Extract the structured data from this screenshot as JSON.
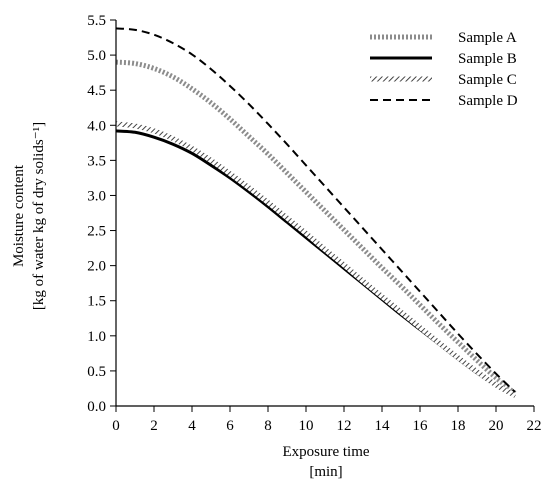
{
  "chart_data": {
    "type": "line",
    "xlabel": [
      "Exposure time",
      "[min]"
    ],
    "ylabel": [
      "Moisture content",
      "[kg of water kg of dry solids⁻¹]"
    ],
    "xlim": [
      0,
      22
    ],
    "ylim": [
      0,
      5.5
    ],
    "xticks": [
      "0",
      "2",
      "4",
      "6",
      "8",
      "10",
      "12",
      "14",
      "16",
      "18",
      "20",
      "22"
    ],
    "yticks": [
      "0.0",
      "0.5",
      "1.0",
      "1.5",
      "2.0",
      "2.5",
      "3.0",
      "3.5",
      "4.0",
      "4.5",
      "5.0",
      "5.5"
    ],
    "grid": false,
    "legend_position": "top-right",
    "series": [
      {
        "name": "Sample A",
        "style": "dense-dotted",
        "color": "#8c8c8c",
        "x": [
          0,
          1,
          2,
          3,
          4,
          5,
          6,
          7,
          8,
          9,
          10,
          11,
          12,
          13,
          14,
          15,
          16,
          17,
          18,
          19,
          20,
          21
        ],
        "y": [
          4.9,
          4.88,
          4.81,
          4.69,
          4.52,
          4.32,
          4.09,
          3.84,
          3.59,
          3.32,
          3.05,
          2.78,
          2.51,
          2.24,
          1.97,
          1.71,
          1.44,
          1.17,
          0.91,
          0.65,
          0.4,
          0.18
        ]
      },
      {
        "name": "Sample B",
        "style": "solid",
        "color": "#000000",
        "x": [
          0,
          1,
          2,
          3,
          4,
          5,
          6,
          7,
          8,
          9,
          10,
          11,
          12,
          13,
          14,
          15,
          16,
          17,
          18,
          19,
          20,
          21
        ],
        "y": [
          3.92,
          3.9,
          3.83,
          3.73,
          3.6,
          3.43,
          3.25,
          3.05,
          2.84,
          2.62,
          2.4,
          2.18,
          1.96,
          1.74,
          1.52,
          1.3,
          1.09,
          0.88,
          0.67,
          0.47,
          0.29,
          0.14
        ]
      },
      {
        "name": "Sample C",
        "style": "hatched",
        "color": "#555555",
        "x": [
          0,
          1,
          2,
          3,
          4,
          5,
          6,
          7,
          8,
          9,
          10,
          11,
          12,
          13,
          14,
          15,
          16,
          17,
          18,
          19,
          20,
          21
        ],
        "y": [
          4.02,
          3.99,
          3.92,
          3.81,
          3.67,
          3.5,
          3.31,
          3.11,
          2.9,
          2.68,
          2.46,
          2.23,
          2.01,
          1.78,
          1.56,
          1.34,
          1.12,
          0.9,
          0.69,
          0.49,
          0.3,
          0.15
        ]
      },
      {
        "name": "Sample D",
        "style": "dashed",
        "color": "#000000",
        "x": [
          0,
          1,
          2,
          3,
          4,
          5,
          6,
          7,
          8,
          9,
          10,
          11,
          12,
          13,
          14,
          15,
          16,
          17,
          18,
          19,
          20,
          21
        ],
        "y": [
          5.38,
          5.36,
          5.29,
          5.17,
          5.01,
          4.8,
          4.56,
          4.3,
          4.02,
          3.73,
          3.43,
          3.13,
          2.83,
          2.53,
          2.23,
          1.93,
          1.63,
          1.33,
          1.03,
          0.74,
          0.46,
          0.2
        ]
      }
    ]
  }
}
